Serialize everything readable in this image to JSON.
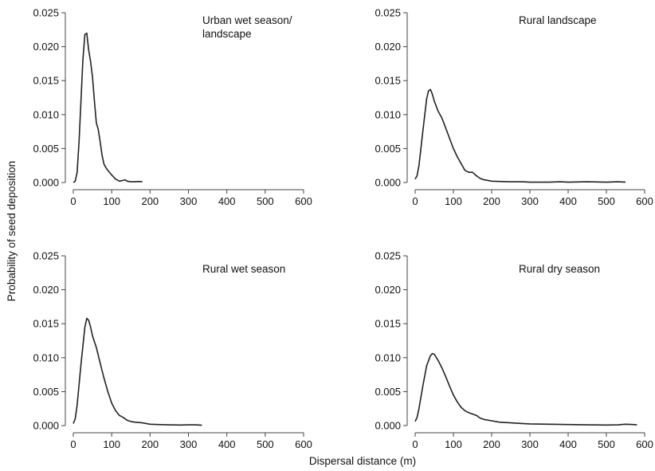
{
  "figure": {
    "ylabel": "Probability of seed deposition",
    "xlabel": "Dispersal distance (m)"
  },
  "chart_data": [
    {
      "type": "line",
      "title_lines": [
        "Urban wet season/",
        "landscape"
      ],
      "xlim": [
        0,
        600
      ],
      "ylim": [
        0,
        0.025
      ],
      "xticks": [
        "0",
        "100",
        "200",
        "300",
        "400",
        "500",
        "600"
      ],
      "yticks": [
        "0.000",
        "0.005",
        "0.010",
        "0.015",
        "0.020",
        "0.025"
      ],
      "x": [
        0,
        5,
        10,
        15,
        20,
        25,
        30,
        35,
        40,
        45,
        50,
        55,
        60,
        65,
        70,
        75,
        80,
        85,
        90,
        100,
        110,
        120,
        130,
        135,
        140,
        150,
        160,
        170,
        180
      ],
      "y": [
        0,
        0.0002,
        0.0015,
        0.006,
        0.012,
        0.018,
        0.0218,
        0.022,
        0.0195,
        0.0178,
        0.0155,
        0.012,
        0.0088,
        0.0078,
        0.006,
        0.004,
        0.0027,
        0.0022,
        0.0018,
        0.0011,
        0.0005,
        0.0002,
        0.0003,
        0.0004,
        0.0002,
        0.0001,
        0.0001,
        0.00015,
        0.0001
      ]
    },
    {
      "type": "line",
      "title_lines": [
        "Rural landscape"
      ],
      "xlim": [
        0,
        600
      ],
      "ylim": [
        0,
        0.025
      ],
      "xticks": [
        "0",
        "100",
        "200",
        "300",
        "400",
        "500",
        "600"
      ],
      "yticks": [
        "0.000",
        "0.005",
        "0.010",
        "0.015",
        "0.020",
        "0.025"
      ],
      "x": [
        0,
        5,
        10,
        20,
        30,
        35,
        40,
        45,
        50,
        60,
        70,
        80,
        90,
        100,
        110,
        120,
        130,
        140,
        150,
        160,
        170,
        180,
        200,
        220,
        250,
        280,
        300,
        350,
        380,
        400,
        450,
        500,
        530,
        550
      ],
      "y": [
        0.0005,
        0.001,
        0.0025,
        0.0075,
        0.0123,
        0.0135,
        0.0137,
        0.013,
        0.012,
        0.0105,
        0.0095,
        0.008,
        0.0065,
        0.005,
        0.0038,
        0.0028,
        0.0018,
        0.0015,
        0.0015,
        0.001,
        0.0006,
        0.0004,
        0.0002,
        0.00015,
        0.0001,
        0.0001,
        5e-05,
        5e-05,
        0.0001,
        5e-05,
        0.0001,
        5e-05,
        0.0001,
        5e-05
      ]
    },
    {
      "type": "line",
      "title_lines": [
        "Rural wet season"
      ],
      "xlim": [
        0,
        600
      ],
      "ylim": [
        0,
        0.025
      ],
      "xticks": [
        "0",
        "100",
        "200",
        "300",
        "400",
        "500",
        "600"
      ],
      "yticks": [
        "0.000",
        "0.005",
        "0.010",
        "0.015",
        "0.020",
        "0.025"
      ],
      "x": [
        0,
        5,
        10,
        20,
        30,
        35,
        40,
        45,
        50,
        60,
        70,
        80,
        90,
        100,
        110,
        120,
        130,
        140,
        150,
        160,
        180,
        200,
        220,
        250,
        280,
        300,
        320,
        335
      ],
      "y": [
        0.0003,
        0.001,
        0.003,
        0.009,
        0.0145,
        0.0158,
        0.0155,
        0.0145,
        0.0132,
        0.0115,
        0.0092,
        0.007,
        0.005,
        0.0033,
        0.0022,
        0.0015,
        0.0012,
        0.0008,
        0.0006,
        0.0005,
        0.0004,
        0.0002,
        0.00015,
        0.0001,
        8e-05,
        0.0001,
        0.0001,
        5e-05
      ]
    },
    {
      "type": "line",
      "title_lines": [
        "Rural dry season"
      ],
      "xlim": [
        0,
        600
      ],
      "ylim": [
        0,
        0.025
      ],
      "xticks": [
        "0",
        "100",
        "200",
        "300",
        "400",
        "500",
        "600"
      ],
      "yticks": [
        "0.000",
        "0.005",
        "0.010",
        "0.015",
        "0.020",
        "0.025"
      ],
      "x": [
        0,
        5,
        10,
        20,
        30,
        40,
        45,
        50,
        60,
        70,
        80,
        90,
        100,
        110,
        120,
        130,
        140,
        150,
        160,
        170,
        180,
        200,
        220,
        250,
        280,
        300,
        350,
        400,
        450,
        500,
        530,
        550,
        570,
        580
      ],
      "y": [
        0.0006,
        0.0012,
        0.0025,
        0.0058,
        0.0088,
        0.0103,
        0.0106,
        0.0105,
        0.0096,
        0.0085,
        0.0072,
        0.0058,
        0.0045,
        0.0035,
        0.0027,
        0.0022,
        0.0019,
        0.0017,
        0.0015,
        0.0011,
        0.0009,
        0.0007,
        0.0005,
        0.0004,
        0.0003,
        0.00025,
        0.0002,
        0.00015,
        0.0001,
        8e-05,
        0.0001,
        0.0002,
        0.00015,
        0.0001
      ]
    }
  ]
}
